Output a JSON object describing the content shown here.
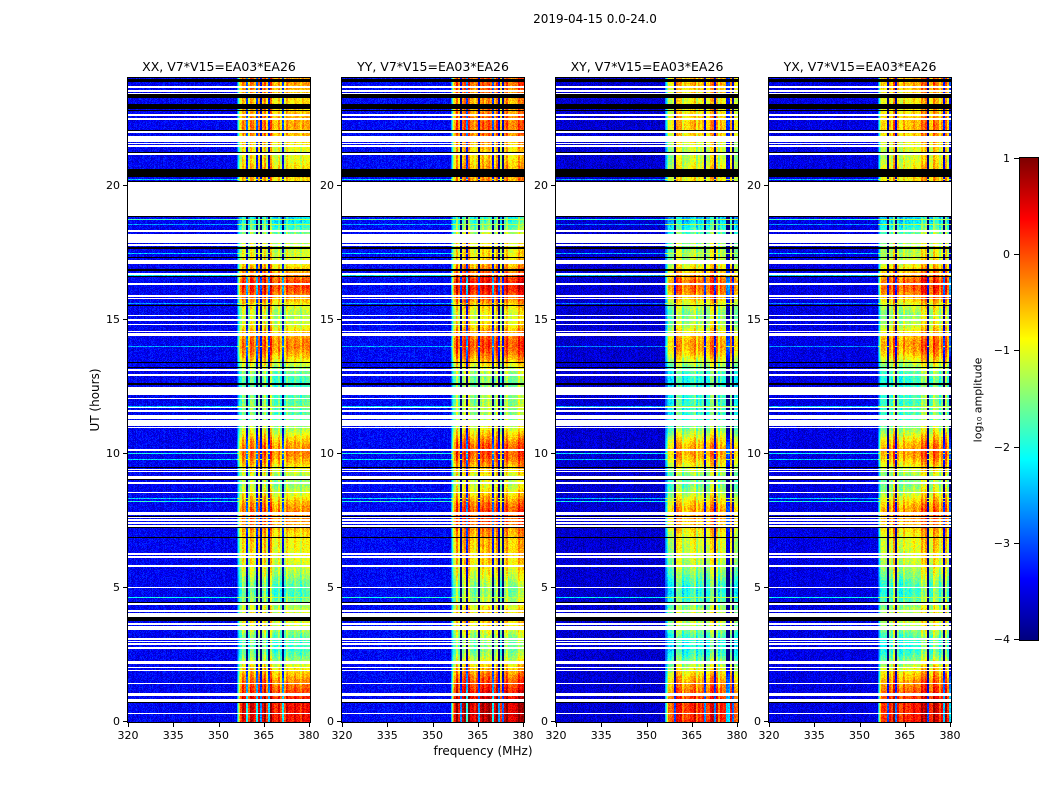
{
  "chart_data": {
    "type": "heatmap",
    "title": "2019-04-15 0.0-24.0",
    "panels": [
      {
        "pol": "XX",
        "title": "XX, V7*V15=EA03*EA26"
      },
      {
        "pol": "YY",
        "title": "YY, V7*V15=EA03*EA26"
      },
      {
        "pol": "XY",
        "title": "XY, V7*V15=EA03*EA26"
      },
      {
        "pol": "YX",
        "title": "YX, V7*V15=EA03*EA26"
      }
    ],
    "x_axis": {
      "label": "frequency (MHz)",
      "range": [
        320,
        380
      ],
      "ticks": [
        320,
        335,
        350,
        365,
        380
      ]
    },
    "y_axis": {
      "label": "UT (hours)",
      "range": [
        0,
        24
      ],
      "ticks": [
        0,
        5,
        10,
        15,
        20
      ]
    },
    "colorbar": {
      "label": "log₁₀ amplitude",
      "range": [
        -4,
        1
      ],
      "colormap": "jet",
      "ticks": [
        {
          "value": 1,
          "label": "1"
        },
        {
          "value": 0,
          "label": "0"
        },
        {
          "value": -1,
          "label": "−1"
        },
        {
          "value": -2,
          "label": "−2"
        },
        {
          "value": -3,
          "label": "−3"
        },
        {
          "value": -4,
          "label": "−4"
        }
      ]
    },
    "content": {
      "background_log_amplitude": [
        -3.8,
        -3.1
      ],
      "rfi_band_mhz": [
        356,
        380
      ],
      "rfi_band_log_amplitude": [
        -1.8,
        0.5
      ],
      "blank_gap_hours": [
        18.85,
        20.12
      ],
      "black_bands_hours": [
        [
          20.3,
          20.62
        ],
        [
          22.86,
          23.04
        ],
        [
          23.26,
          23.42
        ],
        [
          23.86,
          23.97
        ],
        [
          12.55,
          12.63
        ],
        [
          16.82,
          16.88
        ]
      ],
      "flagged_clusters_hours": [
        [
          17.0,
          18.6
        ],
        [
          20.7,
          22.6
        ],
        [
          3.4,
          4.6
        ],
        [
          6.0,
          6.6
        ],
        [
          14.4,
          15.1
        ],
        [
          2.7,
          3.1
        ],
        [
          23.4,
          23.8
        ],
        [
          8.8,
          9.2
        ],
        [
          10.9,
          11.5
        ],
        [
          12.1,
          12.5
        ],
        [
          7.4,
          7.8
        ],
        [
          5.6,
          5.9
        ],
        [
          0.9,
          1.2
        ],
        [
          1.8,
          2.1
        ]
      ]
    }
  }
}
